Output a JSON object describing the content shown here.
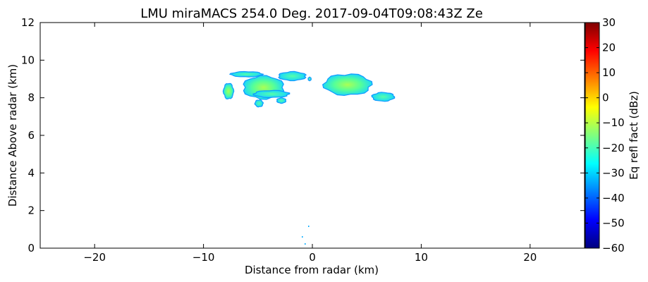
{
  "chart_data": {
    "type": "heatmap",
    "title": "LMU miraMACS 254.0 Deg. 2017-09-04T09:08:43Z  Ze",
    "xlabel": "Distance from radar (km)",
    "ylabel": "Distance Above radar  (km)",
    "xlim": [
      -25,
      25
    ],
    "ylim": [
      0,
      12
    ],
    "x_ticks": [
      -20,
      -10,
      0,
      10,
      20
    ],
    "x_tick_labels": [
      "−20",
      "−10",
      "0",
      "10",
      "20"
    ],
    "y_ticks": [
      0,
      2,
      4,
      6,
      8,
      10,
      12
    ],
    "y_tick_labels": [
      "0",
      "2",
      "4",
      "6",
      "8",
      "10",
      "12"
    ],
    "grid": false,
    "colorbar": {
      "label": "Eq refl fact (dBz)",
      "range": [
        -60,
        30
      ],
      "ticks": [
        -60,
        -50,
        -40,
        -30,
        -20,
        -10,
        0,
        10,
        20,
        30
      ],
      "tick_labels": [
        "−60",
        "−50",
        "−40",
        "−30",
        "−20",
        "−10",
        "0",
        "10",
        "20",
        "30"
      ],
      "colormap": "jet",
      "colors": [
        "#00007f",
        "#0000ff",
        "#007fff",
        "#00ffff",
        "#7fff7f",
        "#ffff00",
        "#ff7f00",
        "#ff0000",
        "#7f0000"
      ]
    },
    "echo_regions": [
      {
        "x_range": [
          -8.2,
          -7.2
        ],
        "y_range": [
          7.9,
          8.8
        ],
        "dbz": -22
      },
      {
        "x_range": [
          -7.6,
          -4.5
        ],
        "y_range": [
          9.1,
          9.4
        ],
        "dbz": -28
      },
      {
        "x_range": [
          -6.5,
          -2.5
        ],
        "y_range": [
          7.9,
          9.2
        ],
        "dbz": -20
      },
      {
        "x_range": [
          -3.2,
          -0.5
        ],
        "y_range": [
          8.9,
          9.4
        ],
        "dbz": -25
      },
      {
        "x_range": [
          -5.5,
          -2.0
        ],
        "y_range": [
          8.0,
          8.4
        ],
        "dbz": -27
      },
      {
        "x_range": [
          -5.3,
          -4.5
        ],
        "y_range": [
          7.5,
          7.9
        ],
        "dbz": -29
      },
      {
        "x_range": [
          -3.3,
          -2.4
        ],
        "y_range": [
          7.7,
          8.0
        ],
        "dbz": -29
      },
      {
        "x_range": [
          0.9,
          5.6
        ],
        "y_range": [
          8.1,
          9.3
        ],
        "dbz": -18
      },
      {
        "x_range": [
          5.4,
          7.6
        ],
        "y_range": [
          7.8,
          8.3
        ],
        "dbz": -26
      },
      {
        "x_range": [
          -0.4,
          -0.1
        ],
        "y_range": [
          8.9,
          9.1
        ],
        "dbz": -32
      }
    ]
  }
}
